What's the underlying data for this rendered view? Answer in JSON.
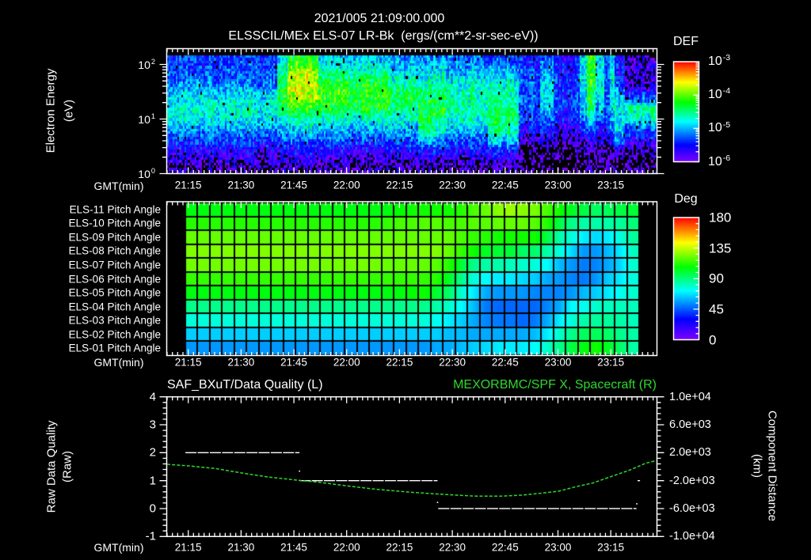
{
  "header": {
    "timestamp": "2021/005 21:09:00.000",
    "title": "ELSSCIL/MEx ELS-07 LR-Bk  (ergs/(cm**2-sr-sec-eV))"
  },
  "colors": {
    "background": "#000000",
    "foreground": "#ffffff",
    "accent_green": "#2ed82e"
  },
  "time_axis": {
    "label": "GMT(min)",
    "start": "21:09",
    "end": "23:28",
    "major_step_min": 15,
    "minor_step_min": 1.5,
    "ticks": [
      "21:15",
      "21:30",
      "21:45",
      "22:00",
      "22:15",
      "22:30",
      "22:45",
      "23:00",
      "23:15"
    ]
  },
  "chart_data": [
    {
      "type": "heatmap",
      "name": "electron energy spectrogram",
      "title": "ELSSCIL/MEx ELS-07 LR-Bk  (ergs/(cm**2-sr-sec-eV))",
      "xlabel": "GMT(min)",
      "ylabel": "Electron Energy",
      "yunit": "(eV)",
      "yscale": "log",
      "ylim": [
        1,
        195
      ],
      "yticks": [
        {
          "base": "10",
          "exp": "2",
          "value": 100
        },
        {
          "base": "10",
          "exp": "1",
          "value": 10
        },
        {
          "base": "10",
          "exp": "0",
          "value": 1
        }
      ],
      "colorbar": {
        "label": "DEF",
        "scale": "log",
        "range": [
          1e-06,
          0.001
        ],
        "ticks": [
          {
            "base": "10",
            "exp": "-3"
          },
          {
            "base": "10",
            "exp": "-4"
          },
          {
            "base": "10",
            "exp": "-5"
          },
          {
            "base": "10",
            "exp": "-6"
          }
        ]
      },
      "energy_rows_log10_eV": [
        2.2,
        2.0,
        1.8,
        1.6,
        1.4,
        1.2,
        1.0,
        0.8,
        0.6,
        0.4,
        0.2,
        0.0
      ],
      "segments": [
        {
          "start": "21:09",
          "end": "21:40",
          "log10_def": [
            -5.4,
            -5.35,
            -5.3,
            -5.1,
            -4.85,
            -4.75,
            -4.8,
            -5.1,
            -5.4,
            -5.7,
            -5.9,
            -6.0
          ]
        },
        {
          "start": "21:40",
          "end": "21:43",
          "log10_def": [
            -5.0,
            -4.8,
            -4.5,
            -4.4,
            -4.3,
            -4.4,
            -4.7,
            -5.0,
            -5.3,
            -5.6,
            -5.9,
            -6.0
          ]
        },
        {
          "start": "21:43",
          "end": "21:52",
          "log10_def": [
            -4.3,
            -4.1,
            -3.75,
            -3.7,
            -3.85,
            -4.2,
            -4.6,
            -4.9,
            -5.3,
            -5.6,
            -5.85,
            -6.0
          ]
        },
        {
          "start": "21:52",
          "end": "22:12",
          "log10_def": [
            -5.0,
            -4.8,
            -4.5,
            -4.25,
            -4.15,
            -4.3,
            -4.7,
            -5.0,
            -5.35,
            -5.65,
            -5.9,
            -6.0
          ]
        },
        {
          "start": "22:12",
          "end": "22:20",
          "log10_def": [
            -5.2,
            -5.0,
            -4.8,
            -4.5,
            -4.4,
            -4.5,
            -4.75,
            -5.0,
            -5.3,
            -5.6,
            -5.9,
            -6.0
          ]
        },
        {
          "start": "22:20",
          "end": "22:25",
          "log10_def": [
            -5.2,
            -5.0,
            -4.8,
            -4.6,
            -4.4,
            -4.3,
            -4.35,
            -4.5,
            -5.0,
            -5.5,
            -5.85,
            -6.0
          ]
        },
        {
          "start": "22:25",
          "end": "22:28",
          "log10_def": [
            -5.1,
            -4.9,
            -4.7,
            -4.5,
            -4.3,
            -4.25,
            -4.4,
            -4.6,
            -5.1,
            -5.5,
            -5.9,
            -6.0
          ]
        },
        {
          "start": "22:28",
          "end": "22:40",
          "log10_def": [
            -5.3,
            -5.1,
            -4.9,
            -4.7,
            -4.6,
            -4.6,
            -4.7,
            -4.9,
            -5.3,
            -5.6,
            -5.9,
            -6.0
          ]
        },
        {
          "start": "22:40",
          "end": "22:49",
          "log10_def": [
            -5.4,
            -5.2,
            -4.9,
            -4.7,
            -4.6,
            -4.45,
            -4.4,
            -4.6,
            -4.95,
            -5.5,
            -5.85,
            -6.0
          ]
        },
        {
          "start": "22:49",
          "end": "22:55",
          "log10_def": [
            -5.5,
            -5.45,
            -5.35,
            -5.3,
            -5.3,
            -5.3,
            -5.4,
            -5.6,
            -5.9,
            -6.05,
            -6.15,
            -6.15
          ]
        },
        {
          "start": "22:55",
          "end": "22:59",
          "log10_def": [
            -5.4,
            -5.2,
            -5.0,
            -4.85,
            -4.85,
            -4.95,
            -5.2,
            -5.5,
            -5.85,
            -6.05,
            -6.15,
            -6.15
          ]
        },
        {
          "start": "22:59",
          "end": "23:06",
          "log10_def": [
            -5.6,
            -5.5,
            -5.45,
            -5.4,
            -5.4,
            -5.4,
            -5.5,
            -5.7,
            -5.95,
            -6.1,
            -6.2,
            -6.2
          ]
        },
        {
          "start": "23:06",
          "end": "23:08",
          "log10_def": [
            -4.9,
            -4.8,
            -4.8,
            -4.8,
            -4.85,
            -4.9,
            -5.1,
            -5.4,
            -5.8,
            -6.0,
            -6.1,
            -6.1
          ]
        },
        {
          "start": "23:08",
          "end": "23:10.5",
          "log10_def": [
            -4.3,
            -4.25,
            -4.25,
            -4.3,
            -4.4,
            -4.5,
            -4.8,
            -5.3,
            -5.7,
            -5.95,
            -6.05,
            -6.1
          ]
        },
        {
          "start": "23:10.5",
          "end": "23:13",
          "log10_def": [
            -4.9,
            -4.85,
            -4.85,
            -4.85,
            -4.9,
            -5.0,
            -5.2,
            -5.5,
            -5.8,
            -6.0,
            -6.1,
            -6.1
          ]
        },
        {
          "start": "23:13",
          "end": "23:14.5",
          "log10_def": [
            -5.4,
            -5.35,
            -5.3,
            -5.3,
            -5.3,
            -5.3,
            -5.4,
            -5.6,
            -5.9,
            -6.0,
            -6.1,
            -6.1
          ]
        },
        {
          "start": "23:14.5",
          "end": "23:16",
          "log10_def": [
            -4.9,
            -4.85,
            -4.85,
            -4.85,
            -4.85,
            -4.9,
            -5.0,
            -5.2,
            -5.7,
            -6.0,
            -6.1,
            -6.1
          ]
        },
        {
          "start": "23:16",
          "end": "23:19",
          "log10_def": [
            -5.6,
            -5.55,
            -5.5,
            -5.3,
            -5.0,
            -4.8,
            -4.8,
            -4.9,
            -5.3,
            -5.8,
            -6.1,
            -6.1
          ]
        },
        {
          "start": "23:19",
          "end": "23:28",
          "log10_def": [
            -5.9,
            -5.9,
            -5.85,
            -5.8,
            -5.35,
            -4.55,
            -4.75,
            -5.3,
            -5.7,
            -6.0,
            -6.1,
            -6.1
          ]
        }
      ]
    },
    {
      "type": "heatmap",
      "name": "pitch angle",
      "xlabel": "GMT(min)",
      "rows": [
        "ELS-11 Pitch Angle",
        "ELS-10 Pitch Angle",
        "ELS-09 Pitch Angle",
        "ELS-08 Pitch Angle",
        "ELS-07 Pitch Angle",
        "ELS-06 Pitch Angle",
        "ELS-05 Pitch Angle",
        "ELS-04 Pitch Angle",
        "ELS-03 Pitch Angle",
        "ELS-02 Pitch Angle",
        "ELS-01 Pitch Angle"
      ],
      "colorbar": {
        "label": "Deg",
        "range": [
          0,
          180
        ],
        "ticks": [
          "180",
          "135",
          "90",
          "45",
          "0"
        ]
      },
      "column_start": "21:14.2",
      "column_end": "23:23.1",
      "n_columns": 37,
      "values_deg": [
        [
          105,
          105,
          105,
          105,
          105,
          105,
          105,
          105,
          105,
          105,
          105,
          105,
          105,
          105,
          105,
          105,
          105,
          107,
          109,
          109,
          109,
          109,
          112,
          117,
          121,
          126,
          129,
          126,
          124,
          117,
          109,
          102,
          98,
          93,
          95,
          98,
          100
        ],
        [
          112,
          112,
          112,
          112,
          112,
          112,
          112,
          112,
          112,
          112,
          112,
          112,
          112,
          112,
          112,
          112,
          114,
          117,
          117,
          119,
          119,
          117,
          117,
          119,
          119,
          121,
          121,
          121,
          119,
          112,
          98,
          88,
          84,
          84,
          84,
          86,
          91
        ],
        [
          121,
          121,
          121,
          121,
          121,
          121,
          121,
          121,
          121,
          121,
          121,
          121,
          121,
          121,
          121,
          121,
          121,
          121,
          121,
          121,
          121,
          121,
          117,
          114,
          112,
          109,
          109,
          109,
          109,
          98,
          84,
          77,
          69,
          66,
          69,
          77,
          86
        ],
        [
          125,
          125,
          125,
          125,
          125,
          125,
          125,
          125,
          125,
          125,
          125,
          125,
          125,
          125,
          125,
          125,
          125,
          125,
          125,
          125,
          125,
          121,
          114,
          109,
          102,
          100,
          100,
          93,
          93,
          84,
          77,
          66,
          55,
          55,
          61,
          69,
          81
        ],
        [
          123,
          123,
          123,
          123,
          123,
          123,
          123,
          123,
          123,
          123,
          123,
          123,
          123,
          123,
          123,
          123,
          121,
          121,
          121,
          121,
          119,
          112,
          100,
          88,
          84,
          84,
          81,
          79,
          77,
          72,
          61,
          55,
          50,
          52,
          58,
          66,
          79
        ],
        [
          114,
          114,
          114,
          114,
          114,
          114,
          114,
          114,
          114,
          114,
          114,
          114,
          114,
          114,
          114,
          114,
          114,
          114,
          114,
          114,
          112,
          102,
          88,
          77,
          72,
          69,
          69,
          66,
          64,
          58,
          55,
          52,
          50,
          55,
          64,
          69,
          77
        ],
        [
          105,
          105,
          105,
          105,
          105,
          105,
          105,
          105,
          105,
          105,
          105,
          105,
          105,
          105,
          105,
          105,
          105,
          105,
          107,
          109,
          100,
          93,
          79,
          69,
          58,
          55,
          55,
          55,
          52,
          52,
          52,
          55,
          61,
          64,
          69,
          74,
          79
        ],
        [
          88,
          88,
          88,
          88,
          88,
          88,
          88,
          88,
          88,
          88,
          88,
          88,
          88,
          88,
          88,
          88,
          88,
          88,
          88,
          88,
          84,
          79,
          72,
          61,
          50,
          47,
          47,
          47,
          47,
          52,
          58,
          72,
          74,
          79,
          81,
          81,
          81
        ],
        [
          77,
          77,
          77,
          77,
          77,
          77,
          77,
          77,
          77,
          77,
          77,
          77,
          77,
          77,
          77,
          77,
          77,
          77,
          77,
          77,
          74,
          69,
          64,
          58,
          52,
          50,
          50,
          47,
          50,
          58,
          69,
          77,
          84,
          86,
          86,
          84,
          81
        ],
        [
          64,
          64,
          64,
          64,
          64,
          64,
          64,
          64,
          64,
          64,
          64,
          64,
          64,
          64,
          64,
          64,
          64,
          64,
          64,
          64,
          64,
          61,
          61,
          58,
          58,
          58,
          58,
          58,
          61,
          69,
          79,
          88,
          95,
          95,
          93,
          88,
          84
        ],
        [
          55,
          55,
          55,
          55,
          55,
          55,
          55,
          55,
          55,
          55,
          55,
          55,
          55,
          55,
          55,
          55,
          55,
          55,
          55,
          55,
          58,
          58,
          61,
          64,
          66,
          69,
          69,
          69,
          72,
          79,
          88,
          98,
          105,
          109,
          102,
          93,
          84
        ]
      ]
    },
    {
      "type": "line",
      "name": "data quality and spacecraft position",
      "title_left": "SAF_BXuT/Data Quality (L)",
      "title_right": "MEXORBMC/SPF X, Spacecraft (R)",
      "xlabel": "GMT(min)",
      "ylabel_left": "Raw Data Quality",
      "yunit_left": "(Raw)",
      "ylabel_right": "Component Distance",
      "yunit_right": "(km)",
      "ylim_left": [
        -1,
        4
      ],
      "yticks_left": [
        {
          "label": "4",
          "value": 4
        },
        {
          "label": "3",
          "value": 3
        },
        {
          "label": "2",
          "value": 2
        },
        {
          "label": "1",
          "value": 1
        },
        {
          "label": "0",
          "value": 0
        },
        {
          "label": "-1",
          "value": -1
        }
      ],
      "ylim_right": [
        -10000,
        10000
      ],
      "yticks_right": [
        {
          "label": "1.0e+04",
          "value": 10000
        },
        {
          "label": "6.0e+03",
          "value": 6000
        },
        {
          "label": "2.0e+03",
          "value": 2000
        },
        {
          "label": "-2.0e+03",
          "value": -2000
        },
        {
          "label": "-6.0e+03",
          "value": -6000
        },
        {
          "label": "-1.0e+04",
          "value": -10000
        }
      ],
      "series": [
        {
          "name": "SAF_BXuT/Data Quality",
          "axis": "left",
          "color": "#ffffff",
          "segments": [
            {
              "start": "21:14.2",
              "end": "21:46.6",
              "value": 2
            },
            {
              "start": "21:46.6",
              "end": "22:25.8",
              "value": 1
            },
            {
              "start": "22:26.0",
              "end": "23:22.3",
              "value": 0
            },
            {
              "start": "23:22.6",
              "end": "23:23.3",
              "value": 1
            }
          ],
          "points": [
            {
              "t": "21:46.6",
              "value": 1.34
            },
            {
              "t": "22:25.8",
              "value": 0.22
            },
            {
              "t": "23:22.4",
              "value": 0.17
            }
          ]
        },
        {
          "name": "MEXORBMC/SPF X, Spacecraft",
          "axis": "right",
          "color": "#2ed82e",
          "t": [
            "21:09.0",
            "21:15.1",
            "21:22.7",
            "21:30.2",
            "21:37.6",
            "21:45.2",
            "21:52.7",
            "22:00.1",
            "22:07.7",
            "22:18.1",
            "22:24.9",
            "22:32.4",
            "22:36.9",
            "22:43.7",
            "22:49.7",
            "22:54.9",
            "23:00.2",
            "23:05.4",
            "23:09.9",
            "23:15.2",
            "23:20.4",
            "23:24.9",
            "23:27.9"
          ],
          "km": [
            340,
            113,
            -260,
            -906,
            -1472,
            -1891,
            -2265,
            -2752,
            -3205,
            -3658,
            -3884,
            -4111,
            -4224,
            -4224,
            -4077,
            -3816,
            -3511,
            -2831,
            -2344,
            -1393,
            -487,
            487,
            872
          ]
        }
      ]
    }
  ]
}
